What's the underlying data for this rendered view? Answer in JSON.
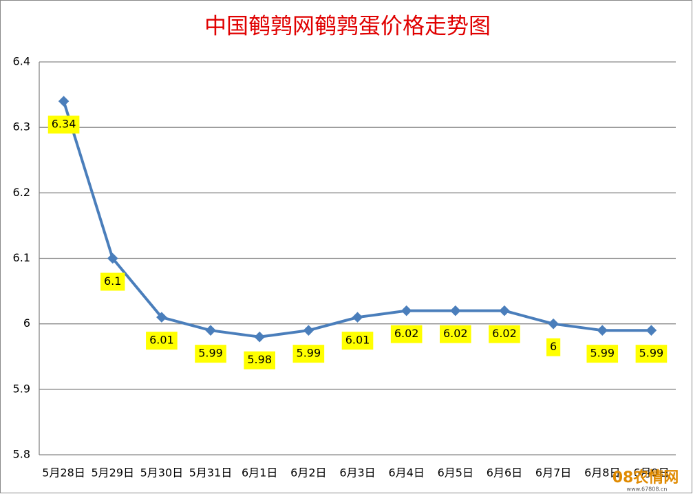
{
  "chart_data": {
    "type": "line",
    "title": "中国鹌鹑网鹌鹑蛋价格走势图",
    "categories": [
      "5月28日",
      "5月29日",
      "5月30日",
      "5月31日",
      "6月1日",
      "6月2日",
      "6月3日",
      "6月4日",
      "6月5日",
      "6月6日",
      "6月7日",
      "6月8日",
      "6月9日"
    ],
    "values": [
      6.34,
      6.1,
      6.01,
      5.99,
      5.98,
      5.99,
      6.01,
      6.02,
      6.02,
      6.02,
      6,
      5.99,
      5.99
    ],
    "color": "#4a7ebb",
    "label_color": "#ffff00",
    "ylim": [
      5.8,
      6.4
    ],
    "yticks": [
      5.8,
      5.9,
      6,
      6.1,
      6.2,
      6.3,
      6.4
    ],
    "grid": true
  },
  "watermark": {
    "text": "08农情网",
    "url": "www.67808.cn"
  }
}
